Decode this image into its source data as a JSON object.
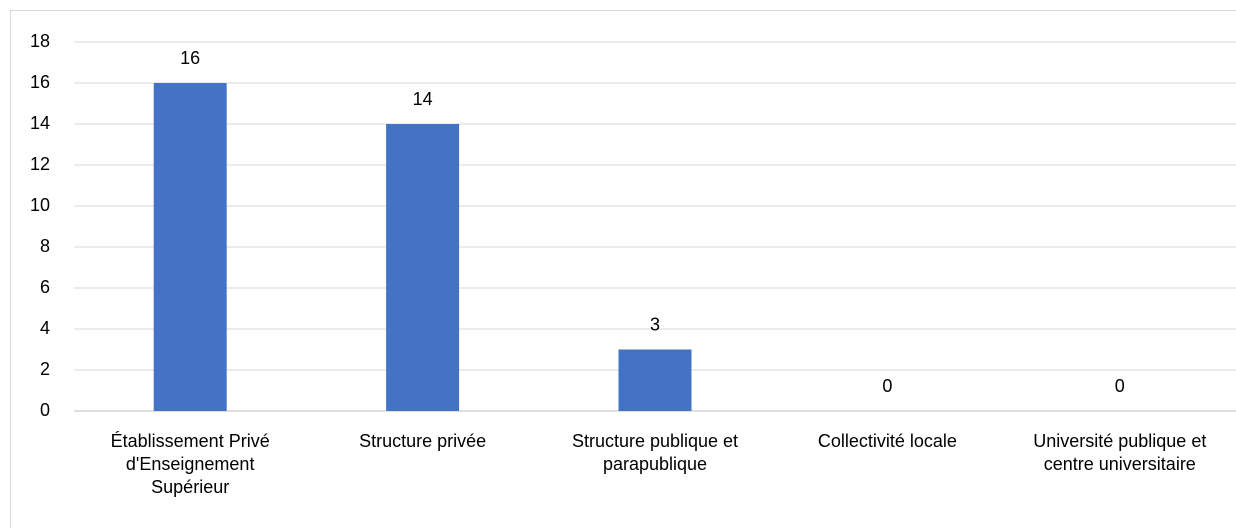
{
  "chart_data": {
    "type": "bar",
    "categories": [
      "Établissement Privé d'Enseignement Supérieur",
      "Structure privée",
      "Structure publique et parapublique",
      "Collectivité locale",
      "Université publique et centre universitaire"
    ],
    "values": [
      16,
      14,
      3,
      0,
      0
    ],
    "color": "#4472c4",
    "ylim": [
      0,
      18
    ],
    "yticks": [
      0,
      2,
      4,
      6,
      8,
      10,
      12,
      14,
      16,
      18
    ],
    "grid": true
  }
}
